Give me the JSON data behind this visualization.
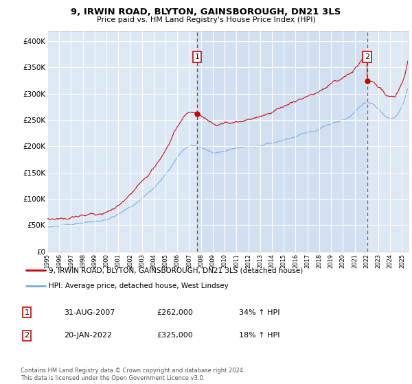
{
  "title": "9, IRWIN ROAD, BLYTON, GAINSBOROUGH, DN21 3LS",
  "subtitle": "Price paid vs. HM Land Registry's House Price Index (HPI)",
  "bg_color": "#dce9f5",
  "legend_line1": "9, IRWIN ROAD, BLYTON, GAINSBOROUGH, DN21 3LS (detached house)",
  "legend_line2": "HPI: Average price, detached house, West Lindsey",
  "sale1_date": "31-AUG-2007",
  "sale1_price": "£262,000",
  "sale1_hpi": "34% ↑ HPI",
  "sale2_date": "20-JAN-2022",
  "sale2_price": "£325,000",
  "sale2_hpi": "18% ↑ HPI",
  "footer": "Contains HM Land Registry data © Crown copyright and database right 2024.\nThis data is licensed under the Open Government Licence v3.0.",
  "red_color": "#cc0000",
  "blue_color": "#7aaadd",
  "shade_color": "#c8d8ee",
  "ylim": [
    0,
    420000
  ],
  "yticks": [
    0,
    50000,
    100000,
    150000,
    200000,
    250000,
    300000,
    350000,
    400000
  ],
  "ytick_labels": [
    "£0",
    "£50K",
    "£100K",
    "£150K",
    "£200K",
    "£250K",
    "£300K",
    "£350K",
    "£400K"
  ],
  "sale1_x": 2007.667,
  "sale1_y": 262000,
  "sale2_x": 2022.05,
  "sale2_y": 325000,
  "xmin": 1995,
  "xmax": 2025.5
}
